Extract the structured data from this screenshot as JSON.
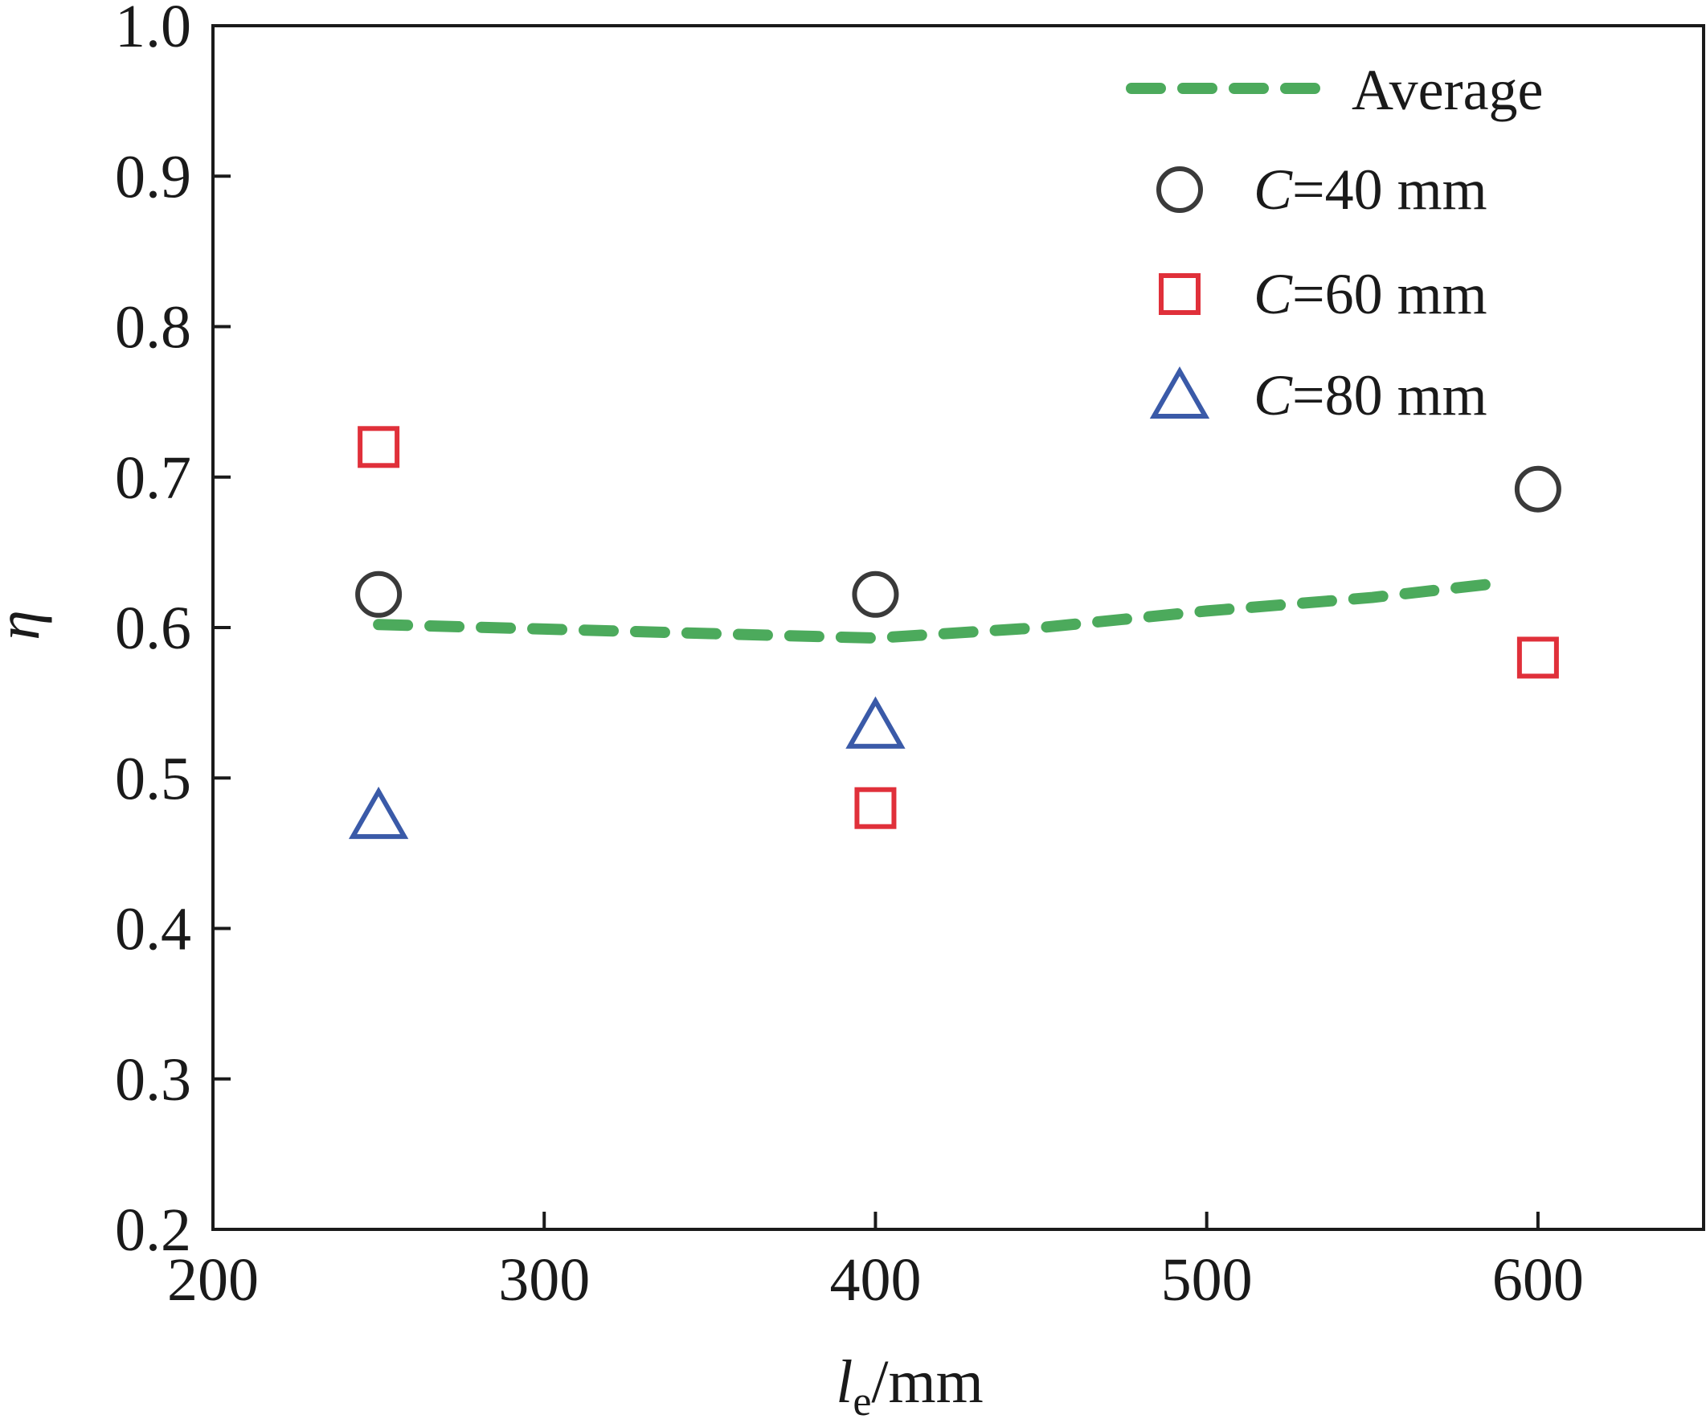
{
  "chart_data": {
    "type": "scatter",
    "xlabel": {
      "main": "l",
      "sub": "e",
      "unit": "/mm"
    },
    "ylabel": "η",
    "xlim": [
      200,
      650
    ],
    "ylim": [
      0.2,
      1.0
    ],
    "xticks": [
      200,
      300,
      400,
      500,
      600
    ],
    "xtick_labels": [
      "200",
      "300",
      "400",
      "500",
      "600"
    ],
    "yticks": [
      0.2,
      0.3,
      0.4,
      0.5,
      0.6,
      0.7,
      0.8,
      0.9,
      1.0
    ],
    "ytick_labels": [
      "0.2",
      "0.3",
      "0.4",
      "0.5",
      "0.6",
      "0.7",
      "0.8",
      "0.9",
      "1.0"
    ],
    "grid": false,
    "legend_position": "top-right",
    "series": [
      {
        "name": "C=40 mm",
        "name_italic": "C",
        "name_rest": "=40 mm",
        "marker": "circle",
        "color": "#3a3a3a",
        "x": [
          250,
          400,
          600
        ],
        "y": [
          0.622,
          0.622,
          0.692
        ]
      },
      {
        "name": "C=60 mm",
        "name_italic": "C",
        "name_rest": "=60 mm",
        "marker": "square",
        "color": "#e0303a",
        "x": [
          250,
          400,
          600
        ],
        "y": [
          0.72,
          0.48,
          0.58
        ]
      },
      {
        "name": "C=80 mm",
        "name_italic": "C",
        "name_rest": "=80 mm",
        "marker": "triangle",
        "color": "#3a5aa8",
        "x": [
          250,
          400
        ],
        "y": [
          0.475,
          0.535
        ]
      }
    ],
    "average": {
      "name": "Average",
      "color": "#4caa5c",
      "x": [
        250,
        300,
        350,
        400,
        450,
        500,
        550,
        590
      ],
      "y": [
        0.602,
        0.599,
        0.596,
        0.593,
        0.6,
        0.611,
        0.62,
        0.63
      ]
    }
  }
}
